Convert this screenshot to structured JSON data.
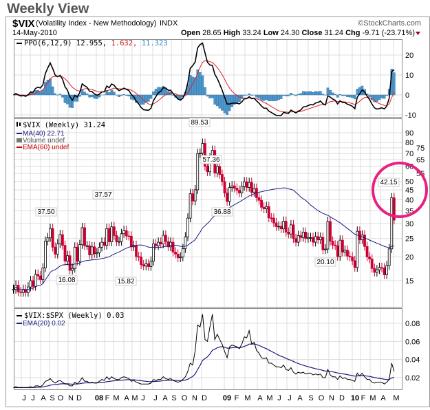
{
  "page_title": "Weekly View",
  "header": {
    "symbol": "$VIX",
    "name": "(Volatility Index - New Methodology)",
    "exchange": "INDX",
    "brand": "©StockCharts.com",
    "date": "14-May-2010",
    "open_label": "Open",
    "open": "28.65",
    "high_label": "High",
    "high": "33.24",
    "low_label": "Low",
    "low": "24.30",
    "close_label": "Close",
    "close": "31.24",
    "chg_label": "Chg",
    "chg": "-9.71 (-23.71%)",
    "down_color": "#990033"
  },
  "colors": {
    "up_candle": "#000000",
    "down_candle": "#cc0033",
    "ma": "#1a1a80",
    "ppo": "#000000",
    "signal": "#e02020",
    "histogram": "#3a8ac4",
    "highlight_circle": "#e8207f",
    "grid": "#d8d8d8"
  },
  "chart_data": [
    {
      "type": "line",
      "panel": "indicator",
      "legend": {
        "label": "PPO(6,12,9)",
        "value": "12.955,",
        "signal": "1.632,",
        "hist": "11.323"
      },
      "ylim": [
        -10,
        28
      ],
      "yticks": [
        "20",
        "10",
        "0",
        "-10"
      ]
    },
    {
      "type": "candlestick",
      "panel": "price",
      "scale": "log",
      "legend": {
        "price": "$VIX (Weekly) 31.24",
        "ma": "MA(40) 22.71",
        "volume": "Volume undef",
        "ema": "EMA(60) undef"
      },
      "yticks": [
        "15",
        "20",
        "25",
        "30",
        "35",
        "40",
        "45",
        "50",
        "55",
        "60",
        "65",
        "70",
        "75",
        "80",
        "90"
      ],
      "ylim": [
        12,
        95
      ],
      "closes": [
        13.5,
        14.2,
        13.1,
        13.0,
        13.5,
        13.0,
        13.9,
        15.0,
        14.0,
        16.2,
        15.9,
        15.2,
        17.5,
        24.2,
        25.2,
        28.2,
        22.5,
        20.7,
        23.4,
        26.2,
        23.0,
        19.0,
        20.3,
        17.0,
        17.4,
        22.5,
        19.0,
        23.2,
        28.5,
        22.9,
        22.9,
        20.5,
        22.6,
        20.8,
        21.0,
        22.5,
        23.9,
        23.0,
        28.2,
        24.0,
        28.8,
        25.9,
        24.0,
        24.1,
        26.5,
        27.5,
        25.8,
        25.7,
        22.6,
        23.0,
        20.1,
        20.0,
        18.2,
        17.9,
        18.4,
        17.8,
        19.0,
        23.4,
        22.9,
        23.9,
        23.4,
        26.0,
        24.1,
        22.6,
        23.9,
        21.2,
        20.7,
        19.8,
        20.0,
        22.1,
        25.5,
        32.0,
        43.0,
        39.4,
        45.1,
        69.9,
        70.3,
        79.1,
        59.9,
        56.1,
        66.3,
        72.7,
        55.3,
        59.9,
        54.3,
        49.8,
        43.4,
        39.2,
        46.4,
        47.3,
        46.0,
        44.8,
        43.4,
        47.0,
        49.6,
        46.4,
        49.3,
        43.7,
        45.9,
        41.0,
        39.7,
        36.5,
        35.8,
        36.8,
        32.1,
        32.0,
        30.2,
        28.9,
        29.0,
        28.1,
        30.8,
        27.0,
        26.4,
        29.5,
        25.0,
        23.9,
        25.9,
        25.3,
        27.0,
        25.0,
        25.3,
        25.3,
        23.9,
        25.6,
        24.6,
        25.4,
        21.8,
        22.0,
        30.7,
        24.2,
        23.1,
        22.9,
        20.1,
        24.5,
        21.2,
        21.7,
        20.2,
        20.0,
        19.1,
        17.6,
        27.3,
        24.6,
        26.1,
        22.7,
        20.0,
        19.5,
        17.4,
        16.6,
        17.1,
        17.6,
        17.5,
        16.1,
        18.0,
        22.05,
        40.95,
        31.24
      ],
      "annotations": [
        "37.50",
        "16.08",
        "37.57",
        "15.82",
        "89.53",
        "57.36",
        "36.88",
        "20.10",
        "42.15"
      ]
    },
    {
      "type": "line",
      "panel": "ratio",
      "legend": {
        "ratio": "$VIX:$SPX (Weekly) 0.03",
        "ema": "EMA(20) 0.02"
      },
      "yticks": [
        "0.08",
        "0.06",
        "0.04",
        "0.02"
      ],
      "ylim": [
        0.005,
        0.095
      ],
      "values": [
        0.009,
        0.01,
        0.009,
        0.009,
        0.009,
        0.009,
        0.009,
        0.01,
        0.009,
        0.011,
        0.011,
        0.01,
        0.012,
        0.016,
        0.017,
        0.019,
        0.016,
        0.014,
        0.016,
        0.017,
        0.015,
        0.013,
        0.013,
        0.011,
        0.011,
        0.015,
        0.013,
        0.016,
        0.02,
        0.016,
        0.016,
        0.014,
        0.015,
        0.014,
        0.014,
        0.016,
        0.018,
        0.017,
        0.021,
        0.018,
        0.021,
        0.019,
        0.018,
        0.018,
        0.02,
        0.021,
        0.02,
        0.019,
        0.016,
        0.017,
        0.015,
        0.014,
        0.013,
        0.013,
        0.013,
        0.013,
        0.014,
        0.018,
        0.017,
        0.018,
        0.018,
        0.021,
        0.019,
        0.018,
        0.019,
        0.017,
        0.016,
        0.015,
        0.016,
        0.018,
        0.021,
        0.027,
        0.036,
        0.034,
        0.05,
        0.078,
        0.076,
        0.09,
        0.062,
        0.06,
        0.076,
        0.09,
        0.062,
        0.068,
        0.062,
        0.057,
        0.049,
        0.042,
        0.054,
        0.056,
        0.055,
        0.054,
        0.052,
        0.057,
        0.065,
        0.064,
        0.072,
        0.057,
        0.059,
        0.05,
        0.047,
        0.042,
        0.041,
        0.042,
        0.036,
        0.036,
        0.034,
        0.032,
        0.032,
        0.031,
        0.034,
        0.029,
        0.028,
        0.031,
        0.026,
        0.024,
        0.026,
        0.025,
        0.026,
        0.024,
        0.025,
        0.025,
        0.023,
        0.024,
        0.023,
        0.024,
        0.02,
        0.02,
        0.029,
        0.023,
        0.021,
        0.021,
        0.018,
        0.022,
        0.019,
        0.02,
        0.018,
        0.018,
        0.017,
        0.016,
        0.025,
        0.022,
        0.025,
        0.021,
        0.018,
        0.018,
        0.015,
        0.014,
        0.015,
        0.015,
        0.015,
        0.013,
        0.015,
        0.018,
        0.036,
        0.027
      ]
    }
  ],
  "x_axis": {
    "labels": [
      "J",
      "J",
      "A",
      "S",
      "O",
      "N",
      "D",
      "08",
      "F",
      "M",
      "A",
      "M",
      "J",
      "J",
      "A",
      "S",
      "O",
      "N",
      "D",
      "09",
      "F",
      "M",
      "A",
      "M",
      "J",
      "J",
      "A",
      "S",
      "O",
      "N",
      "D",
      "10",
      "F",
      "M",
      "A",
      "M"
    ]
  }
}
